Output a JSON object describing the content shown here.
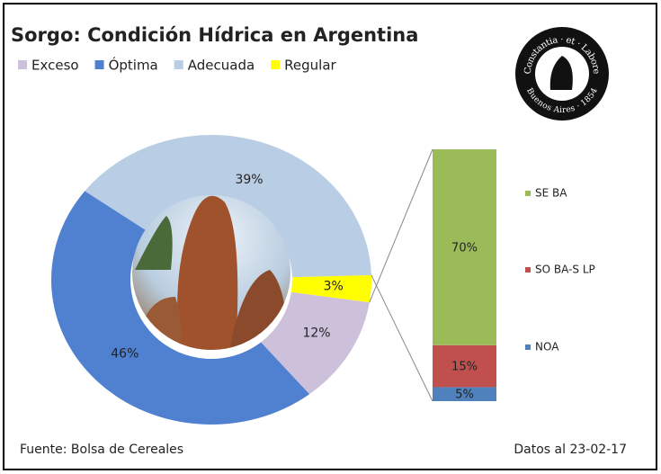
{
  "chart_data": [
    {
      "type": "donut",
      "title": "Sorgo: Condición Hídrica en Argentina",
      "categories": [
        "Exceso",
        "Óptima",
        "Adecuada",
        "Regular"
      ],
      "values": [
        12,
        46,
        39,
        3
      ],
      "value_labels": [
        "12%",
        "46%",
        "39%",
        "3%"
      ],
      "colors": [
        "#ccc0da",
        "#4f81d0",
        "#b9cde5",
        "#ffff00"
      ]
    },
    {
      "type": "stacked-bar",
      "categories": [
        "NOA",
        "SO BA-S LP",
        "SE BA"
      ],
      "values": [
        5,
        15,
        70
      ],
      "value_labels": [
        "5%",
        "15%",
        "70%"
      ],
      "colors": [
        "#4f81bd",
        "#c0504d",
        "#9bbb59"
      ]
    }
  ],
  "footer": {
    "source": "Fuente: Bolsa de Cereales",
    "date": "Datos al 23-02-17"
  },
  "logo": {
    "top_text": "Constantia · et · Labore",
    "bottom_text": "Buenos Aires · 1854"
  }
}
